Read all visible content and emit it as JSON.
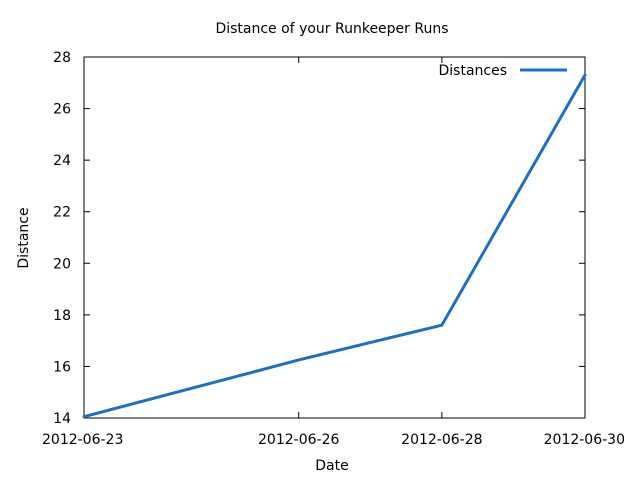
{
  "chart_data": {
    "type": "line",
    "title": "Distance of your Runkeeper Runs",
    "xlabel": "Date",
    "ylabel": "Distance",
    "x_ticks": [
      "2012-06-23",
      "2012-06-26",
      "2012-06-28",
      "2012-06-30"
    ],
    "y_ticks": [
      14,
      16,
      18,
      20,
      22,
      24,
      26,
      28
    ],
    "ylim": [
      14,
      28
    ],
    "xlim": [
      "2012-06-23",
      "2012-06-30"
    ],
    "legend_position": "top-right",
    "grid": false,
    "series": [
      {
        "name": "Distances",
        "color": "#1f6fbf",
        "points": [
          {
            "x": "2012-06-23",
            "y": 14.05
          },
          {
            "x": "2012-06-26",
            "y": 16.25
          },
          {
            "x": "2012-06-28",
            "y": 17.6
          },
          {
            "x": "2012-06-30",
            "y": 27.3
          }
        ]
      }
    ]
  }
}
